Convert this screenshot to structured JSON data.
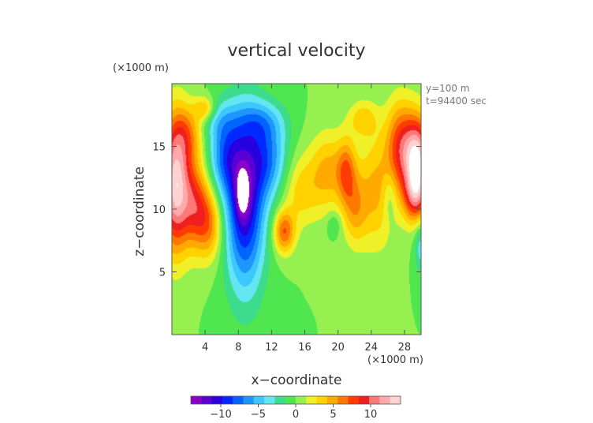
{
  "chart_data": {
    "type": "heatmap",
    "title": "vertical velocity",
    "xlabel": "x−coordinate",
    "ylabel": "z−coordinate",
    "x_unit": "(×1000 m)",
    "y_unit": "(×1000 m)",
    "annotations": [
      "y=100 m",
      "t=94400 sec"
    ],
    "xlim": [
      0,
      30
    ],
    "ylim": [
      0,
      20
    ],
    "x_ticks": [
      4,
      8,
      12,
      16,
      20,
      24,
      28
    ],
    "y_ticks": [
      5,
      10,
      15
    ],
    "colorbar": {
      "range": [
        -14,
        14
      ],
      "ticks": [
        -10,
        -5,
        0,
        5,
        10
      ],
      "tick_labels": [
        "−10",
        "−5",
        "0",
        "5",
        "10"
      ],
      "colors": [
        "#8c00c8",
        "#5a00d2",
        "#2800e0",
        "#0028ff",
        "#0064ff",
        "#1e96ff",
        "#3cc8ff",
        "#64e6f0",
        "#3cdc8c",
        "#50e650",
        "#96f050",
        "#f0f028",
        "#ffd200",
        "#ffaa00",
        "#ff7800",
        "#ff3c00",
        "#f01e1e",
        "#ff7878",
        "#ffaaaa",
        "#ffd2d2"
      ]
    },
    "features": [
      {
        "x": 0.4,
        "y": 12.0,
        "sx": 1.2,
        "sy": 3.6,
        "a": 13.0
      },
      {
        "x": 2.8,
        "y": 10.5,
        "sx": 1.2,
        "sy": 2.4,
        "a": 7.0
      },
      {
        "x": 4.5,
        "y": 8.8,
        "sx": 1.2,
        "sy": 2.0,
        "a": 5.5
      },
      {
        "x": 2.0,
        "y": 16.0,
        "sx": 1.3,
        "sy": 1.6,
        "a": 4.5
      },
      {
        "x": 8.8,
        "y": 10.5,
        "sx": 1.7,
        "sy": 4.8,
        "a": -11.0
      },
      {
        "x": 8.5,
        "y": 11.2,
        "sx": 0.6,
        "sy": 1.4,
        "a": -5.0
      },
      {
        "x": 6.4,
        "y": 14.2,
        "sx": 1.5,
        "sy": 2.2,
        "a": -6.0
      },
      {
        "x": 11.6,
        "y": 14.0,
        "sx": 1.7,
        "sy": 2.2,
        "a": -6.0
      },
      {
        "x": 10.8,
        "y": 17.0,
        "sx": 2.0,
        "sy": 1.2,
        "a": -3.5
      },
      {
        "x": 5.5,
        "y": 17.2,
        "sx": 1.5,
        "sy": 1.2,
        "a": -2.5
      },
      {
        "x": 13.5,
        "y": 8.2,
        "sx": 0.9,
        "sy": 1.2,
        "a": 7.0
      },
      {
        "x": 15.5,
        "y": 11.5,
        "sx": 1.6,
        "sy": 2.0,
        "a": 3.5
      },
      {
        "x": 18.8,
        "y": 13.0,
        "sx": 1.5,
        "sy": 2.2,
        "a": 4.5
      },
      {
        "x": 21.0,
        "y": 13.0,
        "sx": 0.8,
        "sy": 1.8,
        "a": 5.5
      },
      {
        "x": 22.0,
        "y": 10.0,
        "sx": 1.0,
        "sy": 2.0,
        "a": 4.0
      },
      {
        "x": 24.6,
        "y": 11.5,
        "sx": 1.7,
        "sy": 3.2,
        "a": 4.5
      },
      {
        "x": 23.0,
        "y": 17.2,
        "sx": 1.2,
        "sy": 1.0,
        "a": 3.5
      },
      {
        "x": 27.5,
        "y": 15.0,
        "sx": 1.2,
        "sy": 2.5,
        "a": 7.5
      },
      {
        "x": 29.6,
        "y": 14.0,
        "sx": 1.1,
        "sy": 2.3,
        "a": 13.0
      },
      {
        "x": 29.3,
        "y": 11.0,
        "sx": 1.0,
        "sy": 1.5,
        "a": 7.0
      },
      {
        "x": 26.2,
        "y": 11.0,
        "sx": 0.6,
        "sy": 1.5,
        "a": -2.5
      },
      {
        "x": 29.9,
        "y": 7.0,
        "sx": 0.5,
        "sy": 1.5,
        "a": -3.5
      },
      {
        "x": 19.5,
        "y": 8.8,
        "sx": 0.6,
        "sy": 0.7,
        "a": -2.0
      },
      {
        "x": 4.0,
        "y": 18.0,
        "sx": 0.9,
        "sy": 0.7,
        "a": 4.5
      }
    ]
  }
}
